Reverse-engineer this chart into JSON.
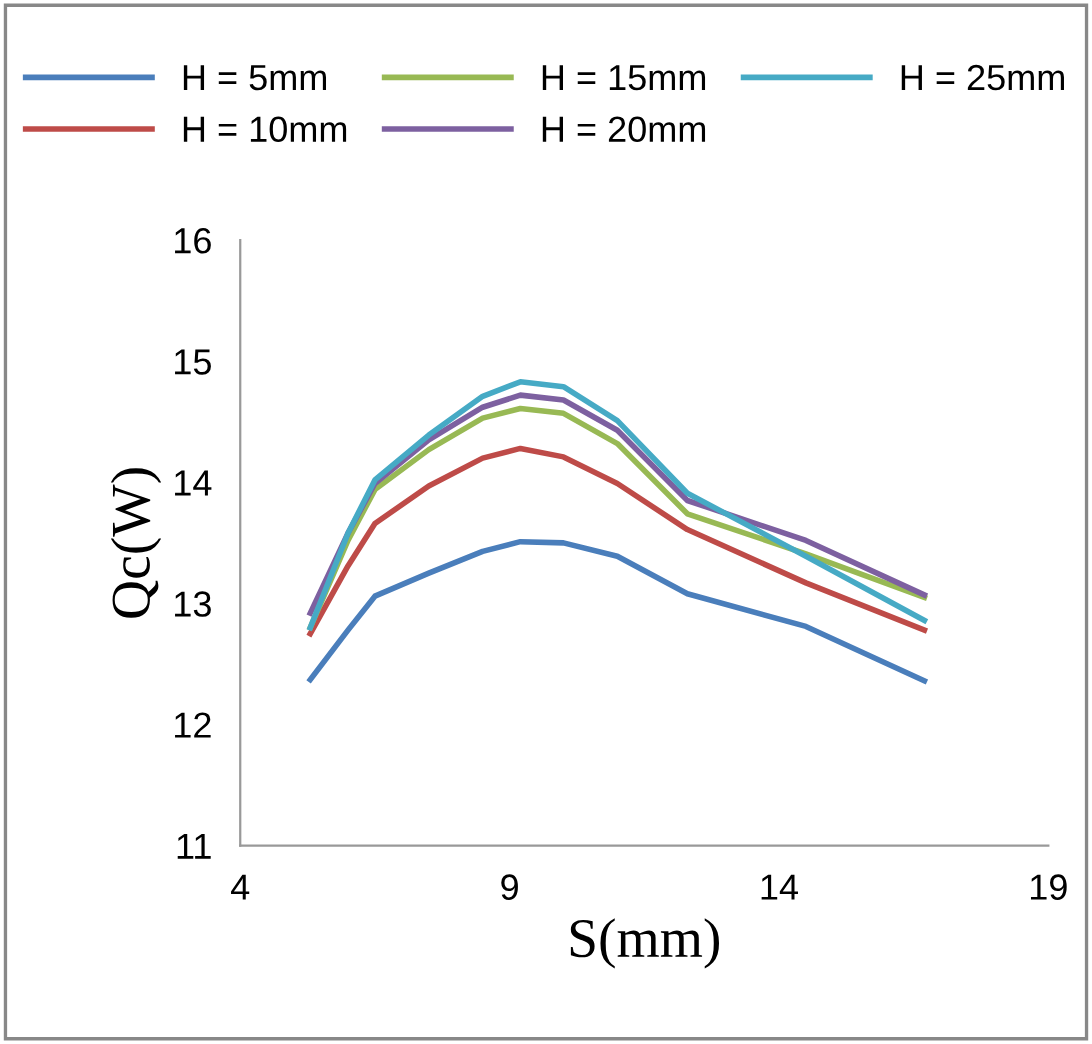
{
  "chart_data": {
    "type": "line",
    "xlabel": "S(mm)",
    "ylabel": "Qc(W)",
    "xlim": [
      4,
      19
    ],
    "xticks": [
      4,
      9,
      14,
      19
    ],
    "ylim": [
      11,
      16
    ],
    "yticks": [
      11,
      12,
      13,
      14,
      15,
      16
    ],
    "grid": false,
    "legend": "top",
    "marker": "none",
    "line_style": "solid",
    "x": [
      5.3,
      6.0,
      6.5,
      7.5,
      8.5,
      9.2,
      10,
      11,
      12.3,
      14.5,
      16.7
    ],
    "series": [
      {
        "name": "H = 5mm",
        "color": "#4a7ebb",
        "values": [
          12.37,
          12.78,
          13.06,
          13.25,
          13.43,
          13.51,
          13.5,
          13.39,
          13.08,
          12.81,
          12.36
        ]
      },
      {
        "name": "H = 10mm",
        "color": "#be4b48",
        "values": [
          12.75,
          13.31,
          13.66,
          13.97,
          14.2,
          14.28,
          14.21,
          13.99,
          13.61,
          13.17,
          12.78
        ]
      },
      {
        "name": "H = 15mm",
        "color": "#98b954",
        "values": [
          12.8,
          13.52,
          13.94,
          14.27,
          14.53,
          14.61,
          14.57,
          14.32,
          13.74,
          13.41,
          13.05
        ]
      },
      {
        "name": "H = 20mm",
        "color": "#7d60a0",
        "values": [
          12.92,
          13.58,
          13.99,
          14.35,
          14.62,
          14.72,
          14.68,
          14.43,
          13.85,
          13.52,
          13.07
        ]
      },
      {
        "name": "H = 25mm",
        "color": "#46aac5",
        "values": [
          12.8,
          13.58,
          14.02,
          14.39,
          14.71,
          14.83,
          14.79,
          14.51,
          13.91,
          13.39,
          12.86
        ]
      }
    ]
  }
}
